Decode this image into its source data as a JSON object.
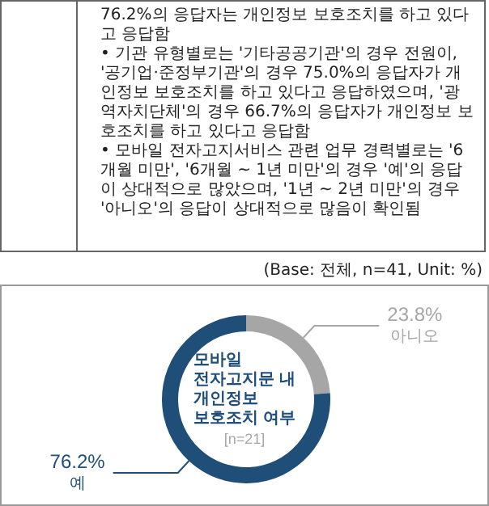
{
  "chart_data": {
    "type": "donut",
    "title": "모바일\n전자고지문 내\n개인정보\n보호조치 여부",
    "subtitle": "[n=21]",
    "categories": [
      "아니오",
      "예"
    ],
    "values": [
      23.8,
      76.2
    ],
    "value_labels": [
      "23.8%",
      "76.2%"
    ],
    "colors": [
      "#a6a6a6",
      "#1f4e79"
    ],
    "annotations": [
      "76.2%의 응답자는 개인정보 보호조치를 하고 있다고 응답함",
      "• 기관 유형별로는 '기타공공기관'의 경우 전원이, '공기업·준정부기관'의 경우 75.0%의 응답자가 개인정보 보호조치를 하고 있다고 응답하였으며, '광역자치단체'의 경우 66.7%의 응답자가 개인정보 보호조치를 하고 있다고 응답함",
      "• 모바일 전자고지서비스 관련 업무 경력별로는 '6개월 미만', '6개월 ~ 1년 미만'의 경우 '예'의 응답이 상대적으로 많았으며, '1년 ~ 2년 미만'의 경우 '아니오'의 응답이 상대적으로 많음이 확인됨",
      "(Base: 전체, n=41, Unit: %)"
    ]
  }
}
